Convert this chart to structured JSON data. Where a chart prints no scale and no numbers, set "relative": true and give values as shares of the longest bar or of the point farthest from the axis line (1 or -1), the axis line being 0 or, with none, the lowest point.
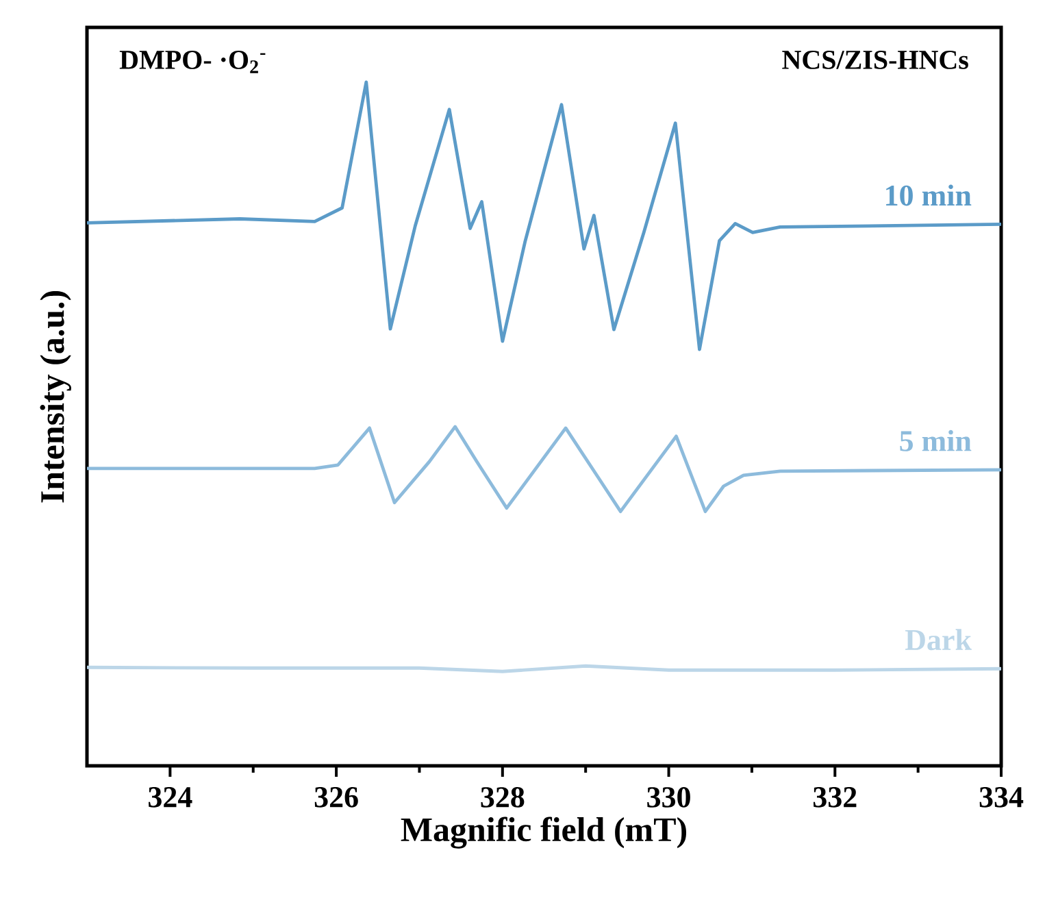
{
  "chart_data": {
    "type": "line",
    "relative": true,
    "xlabel": "Magnific field (mT)",
    "ylabel": "Intensity (a.u.)",
    "annotations": [
      "DMPO- ·O$_{2}$$^{-}$",
      "NCS/ZIS-HNCs"
    ],
    "xlim": [
      323,
      334
    ],
    "xticks": [
      324,
      326,
      328,
      330,
      332,
      334
    ],
    "legend": false,
    "grid": false,
    "marker": "none",
    "line_style": "solid",
    "series": [
      {
        "name": "10 min",
        "color": "#5b9bc8",
        "x": [
          323,
          324.84,
          325.74,
          326.07,
          326.36,
          326.65,
          326.95,
          327.36,
          327.61,
          327.75,
          328.0,
          328.27,
          328.71,
          328.98,
          329.1,
          329.34,
          329.7,
          330.08,
          330.37,
          330.61,
          330.8,
          331.01,
          331.34,
          334
        ],
        "values": [
          0.794,
          0.8,
          0.796,
          0.816,
          1.0,
          0.639,
          0.79,
          0.96,
          0.786,
          0.825,
          0.621,
          0.766,
          0.967,
          0.756,
          0.805,
          0.638,
          0.78,
          0.94,
          0.609,
          0.768,
          0.793,
          0.78,
          0.788,
          0.792
        ]
      },
      {
        "name": "5 min",
        "color": "#8dbbdc",
        "x": [
          323,
          325.74,
          326.02,
          326.4,
          326.7,
          327.12,
          327.43,
          327.69,
          328.05,
          328.76,
          329.15,
          329.42,
          330.09,
          330.44,
          330.66,
          330.9,
          331.34,
          334
        ],
        "values": [
          0.435,
          0.435,
          0.44,
          0.494,
          0.385,
          0.445,
          0.496,
          0.445,
          0.377,
          0.494,
          0.422,
          0.372,
          0.482,
          0.372,
          0.409,
          0.425,
          0.431,
          0.433
        ]
      },
      {
        "name": "Dark",
        "color": "#bcd6e8",
        "x": [
          323,
          325,
          327,
          328,
          329,
          330,
          332,
          334
        ],
        "values": [
          0.144,
          0.143,
          0.143,
          0.138,
          0.146,
          0.14,
          0.14,
          0.142
        ]
      }
    ]
  }
}
